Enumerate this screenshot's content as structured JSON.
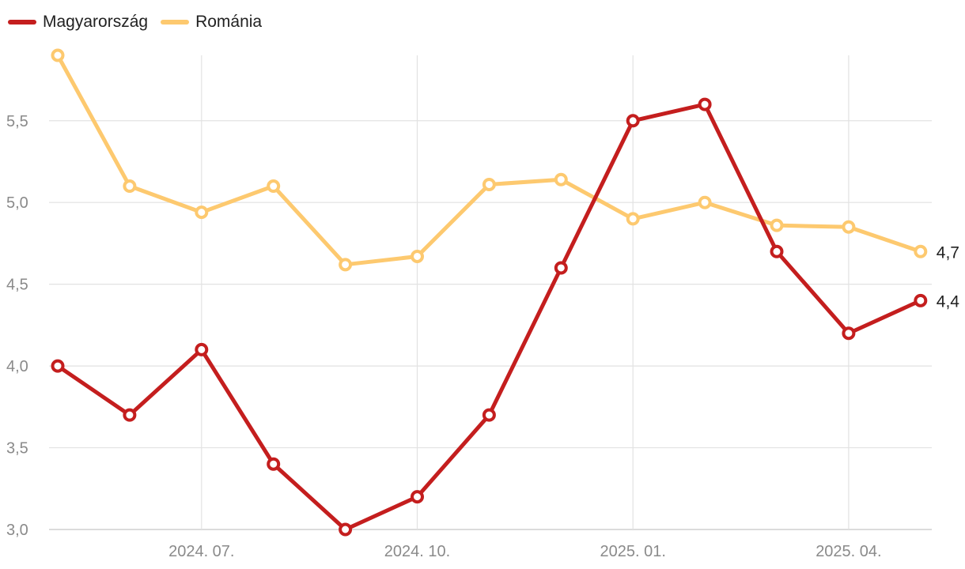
{
  "chart_data": {
    "type": "line",
    "x": [
      "2024-05",
      "2024-06",
      "2024-07",
      "2024-08",
      "2024-09",
      "2024-10",
      "2024-11",
      "2024-12",
      "2025-01",
      "2025-02",
      "2025-03",
      "2025-04",
      "2025-05"
    ],
    "x_ticks": [
      {
        "x": "2024-07",
        "label": "2024. 07."
      },
      {
        "x": "2024-10",
        "label": "2024. 10."
      },
      {
        "x": "2025-01",
        "label": "2025. 01."
      },
      {
        "x": "2025-04",
        "label": "2025. 04."
      }
    ],
    "y_ticks": [
      3.0,
      3.5,
      4.0,
      4.5,
      5.0,
      5.5
    ],
    "y_tick_labels": [
      "3,0",
      "3,5",
      "4,0",
      "4,5",
      "5,0",
      "5,5"
    ],
    "ylim": [
      3.0,
      5.9
    ],
    "grid": true,
    "legend_position": "top-left",
    "series": [
      {
        "name": "Magyarország",
        "color": "#c41e1e",
        "values": [
          4.0,
          3.7,
          4.1,
          3.4,
          3.0,
          3.2,
          3.7,
          4.6,
          5.5,
          5.6,
          4.7,
          4.2,
          4.4
        ],
        "end_label": "4,4"
      },
      {
        "name": "Románia",
        "color": "#fdc96f",
        "values": [
          5.9,
          5.1,
          4.94,
          5.1,
          4.62,
          4.67,
          5.11,
          5.14,
          4.9,
          5.0,
          4.86,
          4.85,
          4.7
        ],
        "end_label": "4,7"
      }
    ]
  }
}
